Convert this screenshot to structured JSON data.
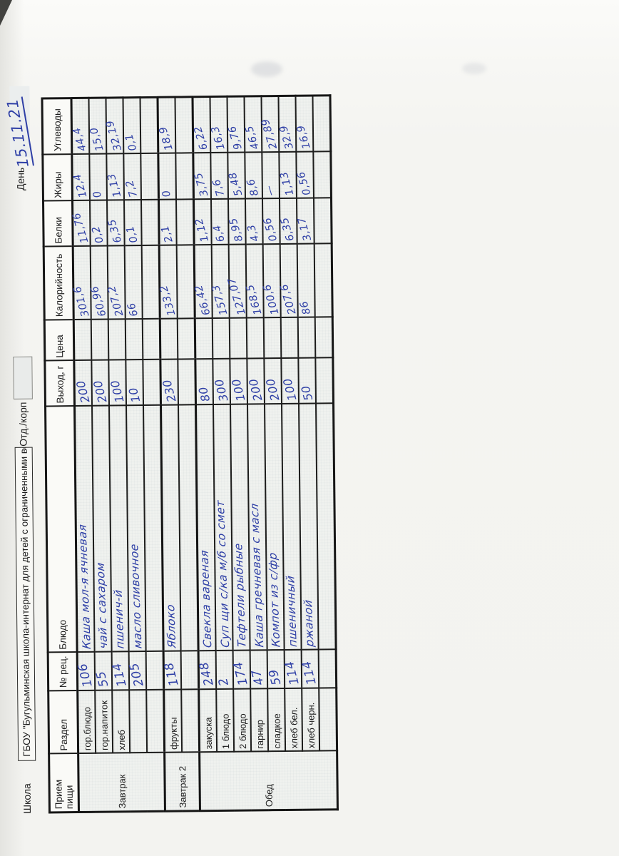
{
  "page": {
    "school_label": "Школа",
    "school_name": "ГБОУ \"Бугульминская школа-интернат для детей с ограниченными возм",
    "dept_label": "Отд./корп",
    "day_label": "День",
    "date_value": "15.11.21"
  },
  "ink_color": "#2e3fa6",
  "table": {
    "headers": [
      "Прием пищи",
      "Раздел",
      "№ рец.",
      "Блюдо",
      "Выход, г",
      "Цена",
      "Калорийность",
      "Белки",
      "Жиры",
      "Углеводы"
    ],
    "sections": [
      {
        "meal": "Завтрак",
        "rows": [
          {
            "razdel": "гор.блюдо",
            "num": "106",
            "dish": "Каша мол-я ячневая",
            "out": "200",
            "price": "",
            "kcal": "301,6",
            "protein": "11,76",
            "fat": "12,4",
            "carbs": "44,4"
          },
          {
            "razdel": "гор.напиток",
            "num": "55",
            "dish": "чай с сахаром",
            "out": "200",
            "price": "",
            "kcal": "60,96",
            "protein": "0,2",
            "fat": "0",
            "carbs": "15,0"
          },
          {
            "razdel": "хлеб",
            "num": "114",
            "dish": "пшенич-й",
            "out": "100",
            "price": "",
            "kcal": "207,2",
            "protein": "6,35",
            "fat": "1,13",
            "carbs": "32,19"
          },
          {
            "razdel": "",
            "num": "205",
            "dish": "масло сливочное",
            "out": "10",
            "price": "",
            "kcal": "66",
            "protein": "0,1",
            "fat": "7,2",
            "carbs": "0,1"
          },
          {
            "razdel": "",
            "num": "",
            "dish": "",
            "out": "",
            "price": "",
            "kcal": "",
            "protein": "",
            "fat": "",
            "carbs": ""
          }
        ]
      },
      {
        "meal": "Завтрак 2",
        "rows": [
          {
            "razdel": "фрукты",
            "num": "118",
            "dish": "Яблоко",
            "out": "230",
            "price": "",
            "kcal": "133,2",
            "protein": "2,1",
            "fat": "0",
            "carbs": "18,9"
          },
          {
            "razdel": "",
            "num": "",
            "dish": "",
            "out": "",
            "price": "",
            "kcal": "",
            "protein": "",
            "fat": "",
            "carbs": ""
          }
        ]
      },
      {
        "meal": "Обед",
        "rows": [
          {
            "razdel": "закуска",
            "num": "248",
            "dish": "Свекла вареная",
            "out": "80",
            "price": "",
            "kcal": "66,42",
            "protein": "1,12",
            "fat": "3,75",
            "carbs": "6,22"
          },
          {
            "razdel": "1 блюдо",
            "num": "2",
            "dish": "Суп щи с/ка м/б со смет",
            "out": "300",
            "price": "",
            "kcal": "157,3",
            "protein": "6,4",
            "fat": "7,6",
            "carbs": "16,3"
          },
          {
            "razdel": "2 блюдо",
            "num": "174",
            "dish": "Тефтели рыбные",
            "out": "100",
            "price": "",
            "kcal": "127,07",
            "protein": "8,95",
            "fat": "5,48",
            "carbs": "9,76"
          },
          {
            "razdel": "гарнир",
            "num": "47",
            "dish": "Каша гречневая с масл",
            "out": "200",
            "price": "",
            "kcal": "168,5",
            "protein": "4,3",
            "fat": "8,6",
            "carbs": "46,5"
          },
          {
            "razdel": "сладкое",
            "num": "59",
            "dish": "Компот из с/фр",
            "out": "200",
            "price": "",
            "kcal": "100,6",
            "protein": "0,56",
            "fat": "—",
            "carbs": "27,89"
          },
          {
            "razdel": "хлеб бел.",
            "num": "114",
            "dish": "пшеничный",
            "out": "100",
            "price": "",
            "kcal": "207,6",
            "protein": "6,35",
            "fat": "1,13",
            "carbs": "32,9"
          },
          {
            "razdel": "хлеб черн.",
            "num": "114",
            "dish": "ржаной",
            "out": "50",
            "price": "",
            "kcal": "86",
            "protein": "3,17",
            "fat": "0,56",
            "carbs": "16,9"
          },
          {
            "razdel": "",
            "num": "",
            "dish": "",
            "out": "",
            "price": "",
            "kcal": "",
            "protein": "",
            "fat": "",
            "carbs": ""
          }
        ]
      }
    ]
  }
}
